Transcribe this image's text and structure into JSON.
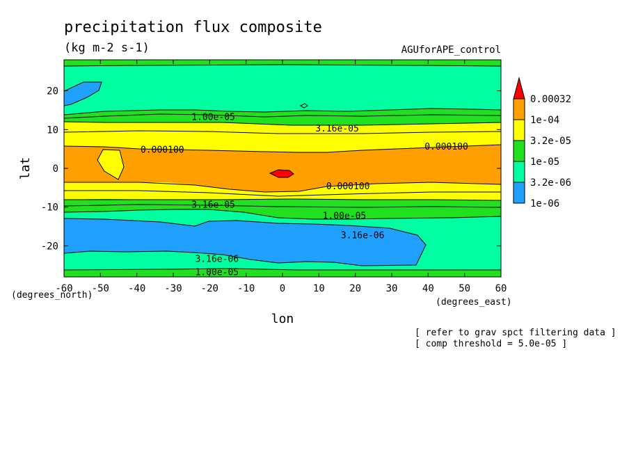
{
  "chart_data": {
    "type": "contour",
    "title": "precipitation flux composite",
    "units": "(kg m-2 s-1)",
    "dataset": "AGUforAPE_control",
    "xlabel": "lon",
    "ylabel": "lat",
    "x_units": "(degrees_east)",
    "y_units": "(degrees_north)",
    "xlim": [
      -60,
      60
    ],
    "ylim": [
      -28,
      28
    ],
    "x_ticks": [
      -60,
      -50,
      -40,
      -30,
      -20,
      -10,
      0,
      10,
      20,
      30,
      40,
      50,
      60
    ],
    "y_ticks": [
      -20,
      -10,
      0,
      10,
      20
    ],
    "notes": [
      "[ refer to grav spct filtering data ]",
      "[ comp threshold = 5.0e-05 ]"
    ],
    "legend": {
      "labels": [
        "0.00032",
        "1e-04",
        "3.2e-05",
        "1e-05",
        "3.2e-06",
        "1e-06"
      ],
      "colors": [
        "#ff0000",
        "#ffa000",
        "#ffff00",
        "#20e020",
        "#00ffa0",
        "#20a0ff"
      ]
    },
    "colors": {
      "lt_1e6": "#20a0ff",
      "r_3e6_1e5": "#00ffa0",
      "r_1e5_3e5": "#20e020",
      "r_3e5_1e4": "#ffff00",
      "r_1e4_3e4": "#ffa000",
      "gt_3e4": "#ff0000"
    },
    "contour_labels": [
      {
        "text": "1.00e-05",
        "lon": -19,
        "lat": 13.2
      },
      {
        "text": "3.16e-05",
        "lon": 15,
        "lat": 10.2
      },
      {
        "text": "0.000100",
        "lon": -33,
        "lat": 4.8
      },
      {
        "text": "0.000100",
        "lon": 45,
        "lat": 5.6
      },
      {
        "text": "0.000100",
        "lon": 18,
        "lat": -4.7
      },
      {
        "text": "3.16e-05",
        "lon": -19,
        "lat": -9.4
      },
      {
        "text": "1.00e-05",
        "lon": 17,
        "lat": -12.3
      },
      {
        "text": "3.16e-06",
        "lon": 22,
        "lat": -17.3
      },
      {
        "text": "3.16e-06",
        "lon": -18,
        "lat": -23.4
      },
      {
        "text": "1.00e-05",
        "lon": -18,
        "lat": -26.8
      }
    ]
  }
}
